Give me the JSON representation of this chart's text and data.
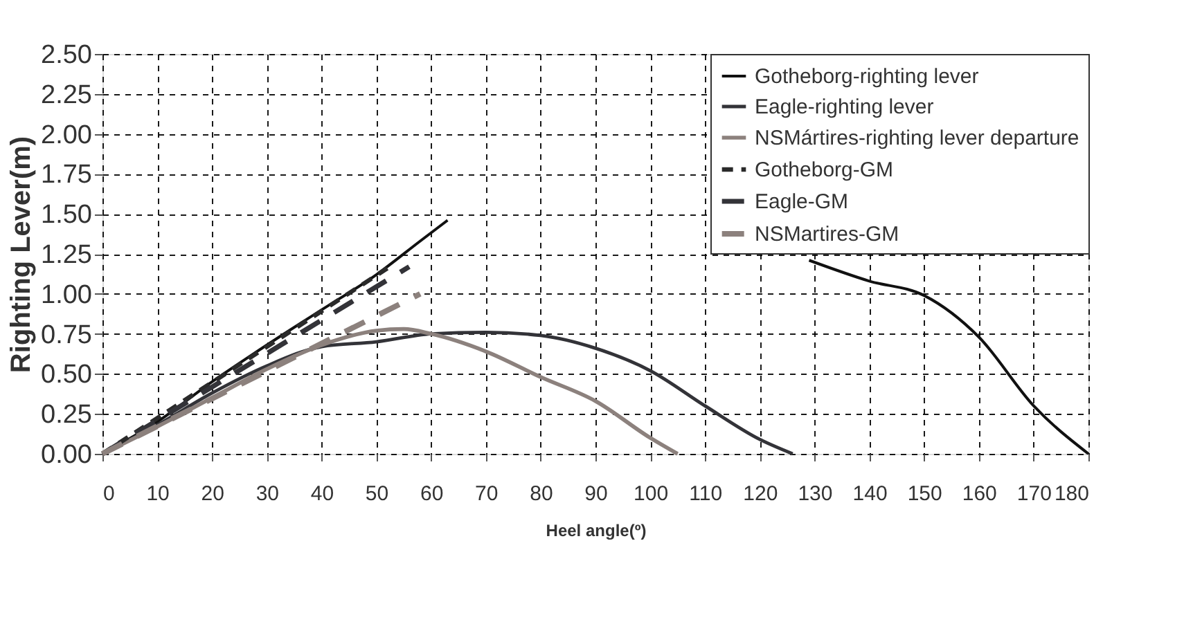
{
  "chart_data": {
    "type": "line",
    "xlabel": "Heel angle(º)",
    "ylabel": "Righting Lever(m)",
    "xlim": [
      0,
      180
    ],
    "xticks": [
      0,
      10,
      20,
      30,
      40,
      50,
      60,
      70,
      80,
      90,
      100,
      110,
      120,
      130,
      140,
      150,
      160,
      170,
      180
    ],
    "ylim": [
      0,
      2.5
    ],
    "yticks": [
      {
        "value": 0,
        "label": "0.00"
      },
      0.25,
      {
        "value": 0.5,
        "label": "0.50"
      },
      0.75,
      {
        "value": 1,
        "label": "1.00"
      },
      1.25,
      {
        "value": 1.5,
        "label": "1.50"
      },
      1.75,
      {
        "value": 2,
        "label": "2.00"
      },
      2.25,
      {
        "value": 2.5,
        "label": "2.50"
      }
    ],
    "grid": true,
    "legend": "top right",
    "marker": "none",
    "series": [
      {
        "name": "Gotheborg-righting lever",
        "color": "#111111",
        "line_style": "solid",
        "x": [
          0,
          10,
          20,
          30,
          40,
          50,
          58,
          63,
          96,
          129,
          140,
          150,
          160,
          170,
          180
        ],
        "values": [
          0,
          0.2,
          0.45,
          0.68,
          0.9,
          1.12,
          1.33,
          1.46,
          null,
          1.21,
          1.08,
          0.99,
          0.73,
          0.3,
          0
        ]
      },
      {
        "name": "Eagle-righting lever",
        "color": "#333338",
        "line_style": "solid",
        "x": [
          0,
          10,
          20,
          30,
          40,
          50,
          60,
          70,
          80,
          90,
          100,
          110,
          120,
          126
        ],
        "values": [
          0,
          0.18,
          0.38,
          0.55,
          0.67,
          0.7,
          0.75,
          0.76,
          0.74,
          0.66,
          0.52,
          0.3,
          0.09,
          0
        ]
      },
      {
        "name": "NSMártires-righting lever departure",
        "color": "#8c817d",
        "line_style": "solid",
        "x": [
          0,
          10,
          20,
          30,
          40,
          50,
          55,
          60,
          70,
          80,
          90,
          100,
          105
        ],
        "values": [
          0,
          0.17,
          0.35,
          0.53,
          0.68,
          0.77,
          0.78,
          0.75,
          0.64,
          0.48,
          0.33,
          0.1,
          0
        ]
      },
      {
        "name": "Gotheborg-GM",
        "color": "#2a2a2a",
        "line_style": "dashed",
        "x": [
          0,
          52
        ],
        "values": [
          0,
          1.16
        ]
      },
      {
        "name": "Eagle-GM",
        "color": "#333338",
        "line_style": "dashed",
        "x": [
          0,
          56
        ],
        "values": [
          0,
          1.17
        ]
      },
      {
        "name": "NSMartires-GM",
        "color": "#8c817d",
        "line_style": "dashed",
        "x": [
          0,
          58
        ],
        "values": [
          0,
          1.0
        ]
      }
    ]
  }
}
